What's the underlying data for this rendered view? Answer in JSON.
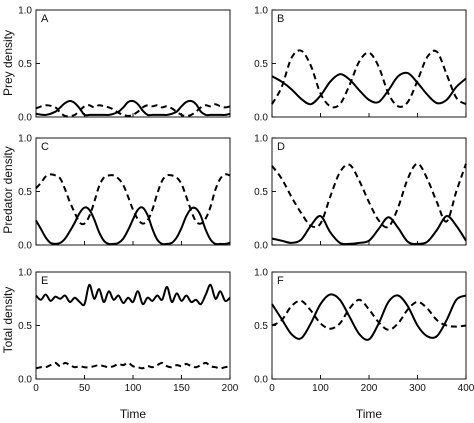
{
  "figure": {
    "row_ylabels": [
      "Prey density",
      "Predator density",
      "Total density"
    ],
    "column_xlabels": [
      "Time",
      "Time"
    ]
  },
  "chart_data": [
    {
      "type": "line",
      "panel": "A",
      "ylim": [
        0,
        1
      ],
      "xlim": [
        0,
        200
      ],
      "yticks": [
        "0.0",
        "0.5",
        "1.0"
      ],
      "xticks": [],
      "series": [
        {
          "style": "solid",
          "x": [
            0,
            10,
            20,
            25,
            30,
            35,
            40,
            45,
            50,
            55,
            60,
            65,
            70,
            75,
            80,
            85,
            90,
            95,
            100,
            105,
            110,
            115,
            120,
            125,
            130,
            135,
            140,
            145,
            150,
            155,
            160,
            165,
            170,
            175,
            180,
            185,
            190,
            195,
            200
          ],
          "values": [
            0.03,
            0.02,
            0.05,
            0.09,
            0.13,
            0.15,
            0.13,
            0.08,
            0.02,
            0.02,
            0.02,
            0.02,
            0.02,
            0.02,
            0.03,
            0.05,
            0.09,
            0.14,
            0.15,
            0.12,
            0.06,
            0.02,
            0.02,
            0.02,
            0.02,
            0.02,
            0.03,
            0.05,
            0.1,
            0.14,
            0.15,
            0.12,
            0.05,
            0.02,
            0.02,
            0.02,
            0.02,
            0.02,
            0.03
          ]
        },
        {
          "style": "dashed",
          "x": [
            0,
            10,
            20,
            25,
            30,
            35,
            40,
            45,
            50,
            55,
            60,
            65,
            70,
            75,
            80,
            85,
            90,
            95,
            100,
            105,
            110,
            115,
            120,
            125,
            130,
            135,
            140,
            145,
            150,
            155,
            160,
            165,
            170,
            175,
            180,
            185,
            190,
            195,
            200
          ],
          "values": [
            0.08,
            0.11,
            0.09,
            0.04,
            0.01,
            0.01,
            0.02,
            0.06,
            0.1,
            0.11,
            0.09,
            0.11,
            0.1,
            0.09,
            0.07,
            0.04,
            0.02,
            0.01,
            0.02,
            0.05,
            0.09,
            0.11,
            0.1,
            0.11,
            0.09,
            0.1,
            0.08,
            0.05,
            0.02,
            0.01,
            0.02,
            0.05,
            0.09,
            0.11,
            0.1,
            0.12,
            0.1,
            0.09,
            0.1
          ]
        }
      ]
    },
    {
      "type": "line",
      "panel": "B",
      "ylim": [
        0,
        1
      ],
      "xlim": [
        0,
        400
      ],
      "yticks": [
        "0.0",
        "0.5",
        "1.0"
      ],
      "xticks": [],
      "series": [
        {
          "style": "solid",
          "x": [
            0,
            20,
            40,
            60,
            80,
            100,
            120,
            140,
            160,
            180,
            200,
            220,
            240,
            260,
            280,
            300,
            320,
            340,
            360,
            380,
            400
          ],
          "values": [
            0.38,
            0.33,
            0.26,
            0.17,
            0.12,
            0.2,
            0.33,
            0.4,
            0.35,
            0.25,
            0.16,
            0.14,
            0.25,
            0.38,
            0.41,
            0.32,
            0.21,
            0.13,
            0.16,
            0.28,
            0.36
          ]
        },
        {
          "style": "dashed",
          "x": [
            0,
            20,
            40,
            60,
            80,
            100,
            120,
            140,
            160,
            180,
            200,
            220,
            240,
            260,
            280,
            300,
            320,
            340,
            360,
            380,
            400
          ],
          "values": [
            0.12,
            0.28,
            0.55,
            0.62,
            0.48,
            0.22,
            0.1,
            0.12,
            0.3,
            0.52,
            0.6,
            0.47,
            0.22,
            0.1,
            0.14,
            0.34,
            0.56,
            0.61,
            0.4,
            0.18,
            0.12
          ]
        }
      ]
    },
    {
      "type": "line",
      "panel": "C",
      "ylim": [
        0,
        1
      ],
      "xlim": [
        0,
        200
      ],
      "yticks": [
        "0.0",
        "0.5",
        "1.0"
      ],
      "xticks": [],
      "series": [
        {
          "style": "solid",
          "x": [
            0,
            5,
            10,
            15,
            20,
            25,
            30,
            35,
            40,
            45,
            50,
            55,
            60,
            65,
            70,
            75,
            80,
            85,
            90,
            95,
            100,
            105,
            110,
            115,
            120,
            125,
            130,
            135,
            140,
            145,
            150,
            155,
            160,
            165,
            170,
            175,
            180,
            185,
            190,
            195,
            200
          ],
          "values": [
            0.23,
            0.15,
            0.07,
            0.02,
            0.01,
            0.02,
            0.06,
            0.13,
            0.21,
            0.3,
            0.35,
            0.33,
            0.24,
            0.12,
            0.04,
            0.01,
            0.01,
            0.02,
            0.06,
            0.14,
            0.24,
            0.33,
            0.35,
            0.28,
            0.15,
            0.05,
            0.01,
            0.01,
            0.02,
            0.07,
            0.16,
            0.27,
            0.34,
            0.34,
            0.27,
            0.14,
            0.05,
            0.01,
            0.01,
            0.01,
            0.02
          ]
        },
        {
          "style": "dashed",
          "x": [
            0,
            5,
            10,
            15,
            20,
            25,
            30,
            35,
            40,
            45,
            50,
            55,
            60,
            65,
            70,
            75,
            80,
            85,
            90,
            95,
            100,
            105,
            110,
            115,
            120,
            125,
            130,
            135,
            140,
            145,
            150,
            155,
            160,
            165,
            170,
            175,
            180,
            185,
            190,
            195,
            200
          ],
          "values": [
            0.53,
            0.58,
            0.64,
            0.66,
            0.65,
            0.62,
            0.52,
            0.4,
            0.3,
            0.21,
            0.2,
            0.27,
            0.4,
            0.55,
            0.63,
            0.65,
            0.65,
            0.62,
            0.56,
            0.45,
            0.33,
            0.24,
            0.2,
            0.23,
            0.33,
            0.48,
            0.6,
            0.65,
            0.65,
            0.63,
            0.57,
            0.45,
            0.32,
            0.22,
            0.2,
            0.25,
            0.36,
            0.52,
            0.62,
            0.66,
            0.65
          ]
        }
      ]
    },
    {
      "type": "line",
      "panel": "D",
      "ylim": [
        0,
        1
      ],
      "xlim": [
        0,
        400
      ],
      "yticks": [
        "0.0",
        "0.5",
        "1.0"
      ],
      "xticks": [],
      "series": [
        {
          "style": "solid",
          "x": [
            0,
            20,
            40,
            60,
            80,
            100,
            120,
            140,
            160,
            180,
            200,
            220,
            240,
            260,
            280,
            300,
            320,
            340,
            360,
            380,
            400
          ],
          "values": [
            0.06,
            0.04,
            0.02,
            0.05,
            0.18,
            0.27,
            0.12,
            0.02,
            0.01,
            0.02,
            0.04,
            0.15,
            0.26,
            0.16,
            0.03,
            0.01,
            0.03,
            0.14,
            0.27,
            0.18,
            0.04
          ]
        },
        {
          "style": "dashed",
          "x": [
            0,
            20,
            40,
            60,
            80,
            100,
            120,
            140,
            160,
            180,
            200,
            220,
            240,
            260,
            280,
            300,
            320,
            340,
            360,
            380,
            400
          ],
          "values": [
            0.74,
            0.62,
            0.45,
            0.3,
            0.18,
            0.2,
            0.45,
            0.68,
            0.75,
            0.6,
            0.4,
            0.23,
            0.17,
            0.35,
            0.62,
            0.76,
            0.62,
            0.4,
            0.22,
            0.5,
            0.76
          ]
        }
      ]
    },
    {
      "type": "line",
      "panel": "E",
      "ylim": [
        0,
        1
      ],
      "xlim": [
        0,
        200
      ],
      "yticks": [
        "0.0",
        "0.5",
        "1.0"
      ],
      "xticks": [
        "0",
        "50",
        "100",
        "150",
        "200"
      ],
      "series": [
        {
          "style": "solid",
          "x": [
            0,
            5,
            10,
            15,
            20,
            25,
            30,
            35,
            40,
            45,
            50,
            55,
            60,
            65,
            70,
            75,
            80,
            85,
            90,
            95,
            100,
            105,
            110,
            115,
            120,
            125,
            130,
            135,
            140,
            145,
            150,
            155,
            160,
            165,
            170,
            175,
            180,
            185,
            190,
            195,
            200
          ],
          "values": [
            0.78,
            0.74,
            0.79,
            0.73,
            0.77,
            0.75,
            0.78,
            0.72,
            0.76,
            0.72,
            0.7,
            0.88,
            0.75,
            0.84,
            0.72,
            0.82,
            0.74,
            0.78,
            0.71,
            0.76,
            0.72,
            0.82,
            0.7,
            0.76,
            0.73,
            0.78,
            0.74,
            0.86,
            0.72,
            0.8,
            0.73,
            0.78,
            0.72,
            0.74,
            0.7,
            0.79,
            0.88,
            0.75,
            0.82,
            0.73,
            0.76
          ]
        },
        {
          "style": "dashed",
          "x": [
            0,
            5,
            10,
            15,
            20,
            25,
            30,
            35,
            40,
            45,
            50,
            55,
            60,
            65,
            70,
            75,
            80,
            85,
            90,
            95,
            100,
            105,
            110,
            115,
            120,
            125,
            130,
            135,
            140,
            145,
            150,
            155,
            160,
            165,
            170,
            175,
            180,
            185,
            190,
            195,
            200
          ],
          "values": [
            0.1,
            0.11,
            0.11,
            0.13,
            0.15,
            0.12,
            0.15,
            0.13,
            0.11,
            0.12,
            0.11,
            0.11,
            0.12,
            0.13,
            0.12,
            0.11,
            0.12,
            0.14,
            0.13,
            0.15,
            0.12,
            0.11,
            0.1,
            0.12,
            0.11,
            0.13,
            0.15,
            0.12,
            0.11,
            0.13,
            0.12,
            0.14,
            0.12,
            0.11,
            0.13,
            0.15,
            0.12,
            0.11,
            0.1,
            0.11,
            0.12
          ]
        }
      ]
    },
    {
      "type": "line",
      "panel": "F",
      "ylim": [
        0,
        1
      ],
      "xlim": [
        0,
        400
      ],
      "yticks": [
        "0.0",
        "0.5",
        "1.0"
      ],
      "xticks": [
        "0",
        "100",
        "200",
        "300",
        "400"
      ],
      "series": [
        {
          "style": "solid",
          "x": [
            0,
            20,
            40,
            60,
            80,
            100,
            120,
            140,
            160,
            180,
            200,
            220,
            240,
            260,
            280,
            300,
            320,
            340,
            360,
            380,
            400
          ],
          "values": [
            0.7,
            0.56,
            0.42,
            0.38,
            0.52,
            0.7,
            0.79,
            0.74,
            0.58,
            0.42,
            0.37,
            0.52,
            0.72,
            0.78,
            0.68,
            0.5,
            0.4,
            0.4,
            0.55,
            0.74,
            0.78
          ]
        },
        {
          "style": "dashed",
          "x": [
            0,
            20,
            40,
            60,
            80,
            100,
            120,
            140,
            160,
            180,
            200,
            220,
            240,
            260,
            280,
            300,
            320,
            340,
            360,
            380,
            400
          ],
          "values": [
            0.5,
            0.55,
            0.68,
            0.73,
            0.64,
            0.52,
            0.47,
            0.52,
            0.66,
            0.74,
            0.65,
            0.53,
            0.46,
            0.52,
            0.65,
            0.72,
            0.66,
            0.55,
            0.5,
            0.49,
            0.5
          ]
        }
      ]
    }
  ]
}
